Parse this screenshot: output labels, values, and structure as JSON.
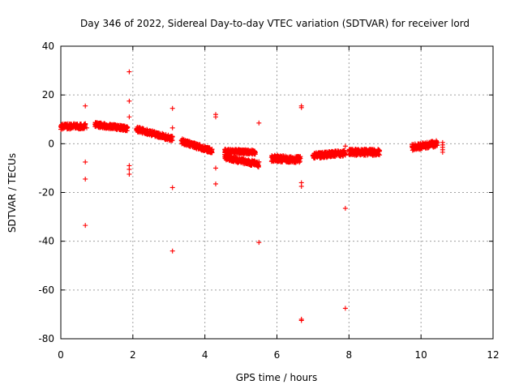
{
  "chart_data": {
    "type": "scatter",
    "title": "Day 346 of 2022, Sidereal Day-to-day VTEC variation (SDTVAR) for receiver lord",
    "xlabel": "GPS time / hours",
    "ylabel": "SDTVAR / TECUs",
    "xlim": [
      0,
      12
    ],
    "ylim": [
      -80,
      40
    ],
    "x_ticks": [
      0,
      2,
      4,
      6,
      8,
      10,
      12
    ],
    "x_tick_labels": [
      "0",
      "2",
      "4",
      "6",
      "8",
      "10",
      "12"
    ],
    "y_ticks": [
      -80,
      -60,
      -40,
      -20,
      0,
      20,
      40
    ],
    "y_tick_labels": [
      "-80",
      "-60",
      "-40",
      "-20",
      "0",
      "20",
      "40"
    ],
    "grid": true,
    "marker": "+",
    "color": "#ff0000",
    "segments": [
      {
        "x0": 0.0,
        "x1": 0.68,
        "y0": 7.0,
        "y1": 7.2,
        "spread": 2.2
      },
      {
        "x0": 0.95,
        "x1": 1.85,
        "y0": 7.8,
        "y1": 6.2,
        "spread": 2.0
      },
      {
        "x0": 2.1,
        "x1": 3.1,
        "y0": 6.0,
        "y1": 2.0,
        "spread": 2.2
      },
      {
        "x0": 3.35,
        "x1": 4.2,
        "y0": 1.0,
        "y1": -3.0,
        "spread": 2.2
      },
      {
        "x0": 4.55,
        "x1": 5.4,
        "y0": -3.0,
        "y1": -3.5,
        "spread": 1.8
      },
      {
        "x0": 4.55,
        "x1": 5.5,
        "y0": -5.5,
        "y1": -8.5,
        "spread": 2.2
      },
      {
        "x0": 5.85,
        "x1": 6.65,
        "y0": -6.0,
        "y1": -6.5,
        "spread": 2.6
      },
      {
        "x0": 7.0,
        "x1": 7.9,
        "y0": -5.0,
        "y1": -3.8,
        "spread": 2.4
      },
      {
        "x0": 8.0,
        "x1": 8.85,
        "y0": -3.5,
        "y1": -3.5,
        "spread": 2.6
      },
      {
        "x0": 9.75,
        "x1": 10.45,
        "y0": -1.5,
        "y1": 0.0,
        "spread": 2.6
      }
    ],
    "points": [
      {
        "x": 0.68,
        "y": 15.5
      },
      {
        "x": 0.68,
        "y": -7.5
      },
      {
        "x": 0.68,
        "y": -14.5
      },
      {
        "x": 0.68,
        "y": -33.5
      },
      {
        "x": 0.72,
        "y": 6.5
      },
      {
        "x": 1.9,
        "y": 29.5
      },
      {
        "x": 1.9,
        "y": 17.5
      },
      {
        "x": 1.9,
        "y": 11.0
      },
      {
        "x": 1.9,
        "y": -9.0
      },
      {
        "x": 1.9,
        "y": -10.5
      },
      {
        "x": 1.9,
        "y": -12.5
      },
      {
        "x": 3.1,
        "y": 14.5
      },
      {
        "x": 3.1,
        "y": 6.5
      },
      {
        "x": 3.1,
        "y": -18.0
      },
      {
        "x": 3.1,
        "y": -44.0
      },
      {
        "x": 4.3,
        "y": 12.0
      },
      {
        "x": 4.3,
        "y": 11.0
      },
      {
        "x": 4.3,
        "y": -10.0
      },
      {
        "x": 4.3,
        "y": -16.5
      },
      {
        "x": 5.5,
        "y": 8.5
      },
      {
        "x": 5.5,
        "y": -40.5
      },
      {
        "x": 6.68,
        "y": 15.5
      },
      {
        "x": 6.68,
        "y": 14.8
      },
      {
        "x": 6.68,
        "y": -16.0
      },
      {
        "x": 6.68,
        "y": -17.5
      },
      {
        "x": 6.68,
        "y": -72.0
      },
      {
        "x": 6.68,
        "y": -72.5
      },
      {
        "x": 7.9,
        "y": -1.0
      },
      {
        "x": 7.9,
        "y": -26.5
      },
      {
        "x": 7.9,
        "y": -67.5
      },
      {
        "x": 10.6,
        "y": 0.5
      },
      {
        "x": 10.6,
        "y": -0.5
      },
      {
        "x": 10.6,
        "y": -1.5
      },
      {
        "x": 10.6,
        "y": -2.5
      },
      {
        "x": 10.6,
        "y": -3.5
      }
    ]
  }
}
